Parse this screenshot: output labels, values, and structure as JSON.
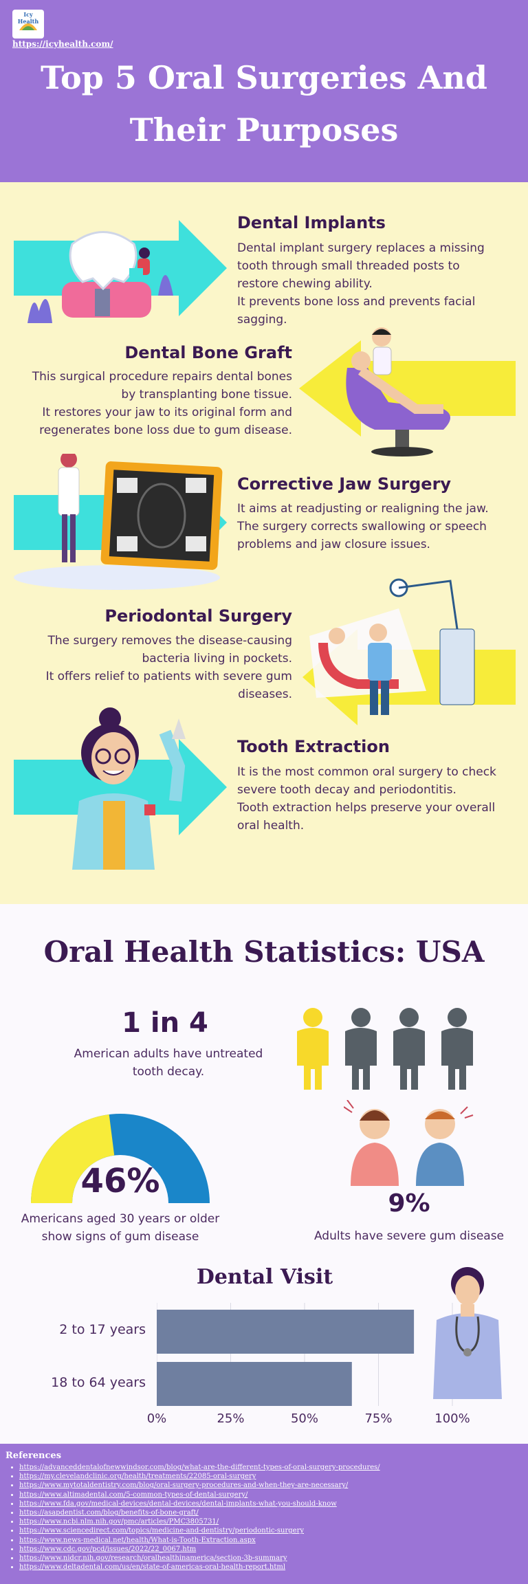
{
  "header": {
    "logo_text": "Icy Health",
    "site_link": "https://icyhealth.com/",
    "title_line1": "Top 5 Oral Surgeries And",
    "title_line2": "Their Purposes"
  },
  "surgeries": [
    {
      "title": "Dental Implants",
      "lines": [
        "Dental implant surgery replaces a missing",
        "tooth through small threaded posts to",
        "restore chewing ability.",
        "It prevents bone loss and prevents facial",
        "sagging."
      ]
    },
    {
      "title": "Dental Bone Graft",
      "lines": [
        "This surgical procedure repairs dental bones",
        "by transplanting bone tissue.",
        "It restores your jaw to its original form and",
        "regenerates bone loss due to gum disease."
      ]
    },
    {
      "title": "Corrective Jaw Surgery",
      "lines": [
        "It aims at readjusting or realigning the jaw.",
        "The surgery corrects swallowing or speech",
        "problems and jaw closure issues."
      ]
    },
    {
      "title": "Periodontal Surgery",
      "lines": [
        "The surgery removes the disease-causing",
        "bacteria living in pockets.",
        "It offers relief to patients with severe gum",
        "diseases."
      ]
    },
    {
      "title": "Tooth Extraction",
      "lines": [
        "It is the most common oral surgery to check",
        "severe tooth decay and periodontitis.",
        "Tooth extraction helps preserve your overall",
        "oral health."
      ]
    }
  ],
  "stats": {
    "title": "Oral Health Statistics: USA",
    "stat1": {
      "value": "1 in 4",
      "label_line1": "American adults have untreated",
      "label_line2": "tooth decay.",
      "fraction": 0.25
    },
    "stat2": {
      "value": "46%",
      "label_line1": "Americans aged 30 years or older",
      "label_line2": "show signs of gum disease",
      "percent": 46
    },
    "stat3": {
      "value": "9%",
      "label": "Adults have severe gum disease"
    }
  },
  "chart_data": {
    "type": "bar",
    "orientation": "horizontal",
    "title": "Dental Visit",
    "categories": [
      "2 to 17 years",
      "18 to 64 years"
    ],
    "values": [
      87,
      66
    ],
    "xlim": [
      0,
      100
    ],
    "xticks": [
      "0%",
      "25%",
      "50%",
      "75%",
      "100%"
    ],
    "xtick_values": [
      0,
      25,
      50,
      75,
      100
    ],
    "grid": true,
    "bar_color": "#6f7fa0"
  },
  "references": {
    "heading": "References",
    "items": [
      "https://advanceddentalofnewwindsor.com/blog/what-are-the-different-types-of-oral-surgery-procedures/",
      "https://my.clevelandclinic.org/health/treatments/22085-oral-surgery",
      "https://www.mytotaldentistry.com/blog/oral-surgery-procedures-and-when-they-are-necessary/",
      "https://www.altimadental.com/5-common-types-of-dental-surgery/",
      "https://www.fda.gov/medical-devices/dental-devices/dental-implants-what-you-should-know",
      "https://asapdentist.com/blog/benefits-of-bone-graft/",
      "https://www.ncbi.nlm.nih.gov/pmc/articles/PMC3805731/",
      "https://www.sciencedirect.com/topics/medicine-and-dentistry/periodontic-surgery",
      "https://www.news-medical.net/health/What-is-Tooth-Extraction.aspx",
      "https://www.cdc.gov/pcd/issues/2022/22_0067.htm",
      "https://www.nidcr.nih.gov/research/oralhealthinamerica/section-3b-summary",
      "https://www.deltadental.com/us/en/state-of-americas-oral-health-report.html"
    ]
  },
  "colors": {
    "purple": "#9b74d6",
    "cream": "#fbf6c9",
    "dark_purple": "#3b1a52",
    "cyan": "#3ee0dc",
    "yellow": "#f7ec3a",
    "blue": "#1a86c9",
    "gray": "#565f66"
  }
}
